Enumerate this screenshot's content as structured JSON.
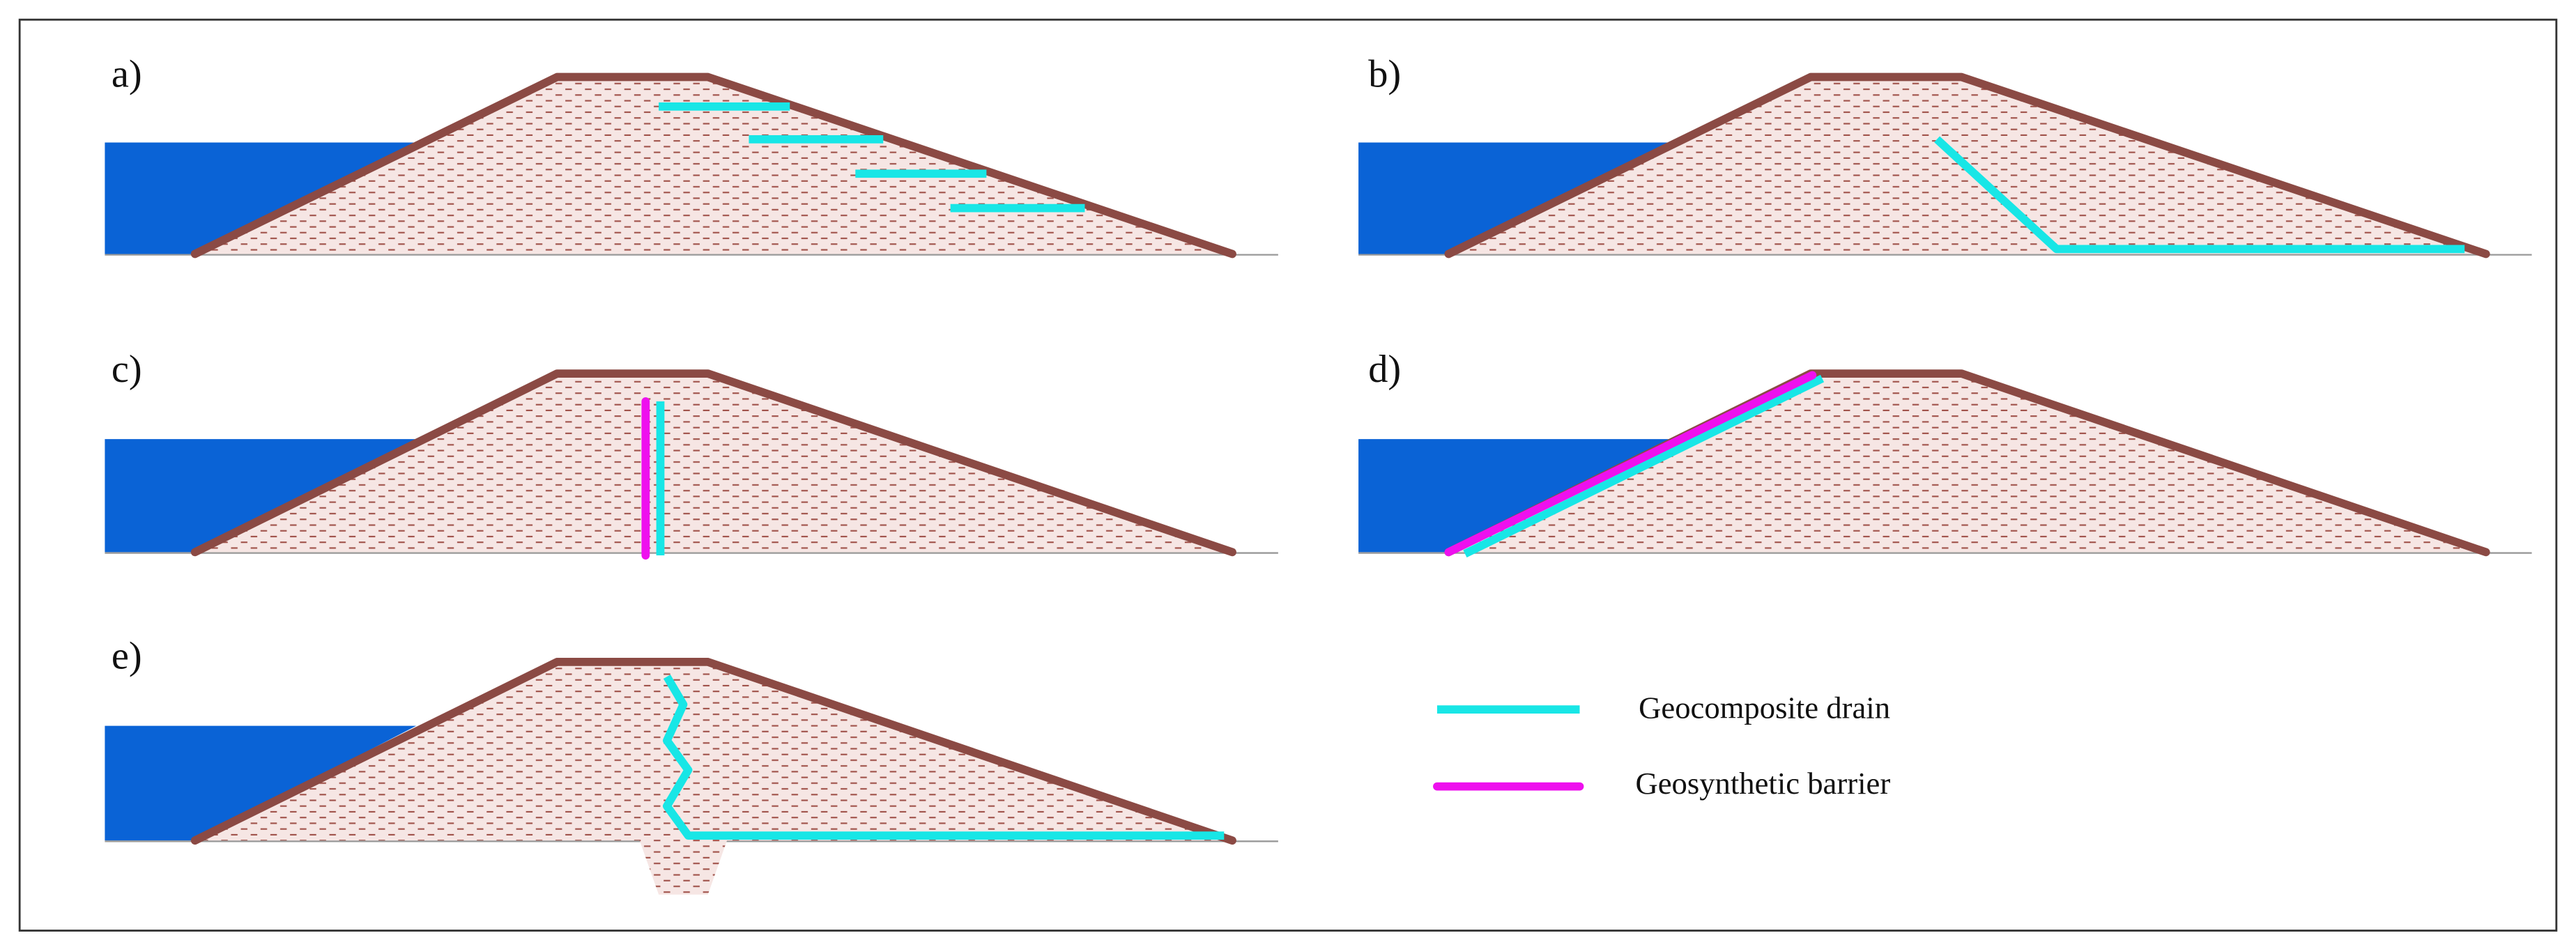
{
  "panels": [
    {
      "label": "a)"
    },
    {
      "label": "b)"
    },
    {
      "label": "c)"
    },
    {
      "label": "d)"
    },
    {
      "label": "e)"
    }
  ],
  "legend": [
    {
      "label": "Geocomposite drain"
    },
    {
      "label": "Geosynthetic barrier"
    }
  ]
}
